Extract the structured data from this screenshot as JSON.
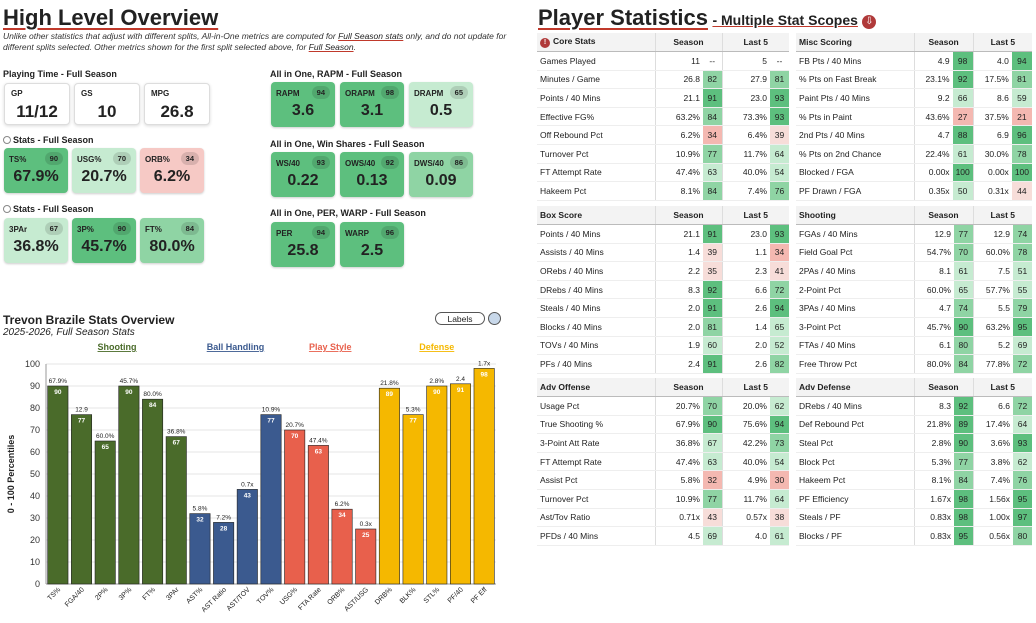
{
  "left": {
    "title": "High Level Overview",
    "note_a": "Unlike other statistics that adjust with different splits, All-in-One metrics are computed for ",
    "note_link1": "Full Season stats",
    "note_b": " only, and do not update for different splits selected. Other metrics shown for the first split selected above, for ",
    "note_link2": "Full Season",
    "note_c": ".",
    "playing_time": {
      "title": "Playing Time - Full Season",
      "cards": [
        {
          "label": "GP",
          "value": "11/12"
        },
        {
          "label": "GS",
          "value": "10"
        },
        {
          "label": "MPG",
          "value": "26.8"
        }
      ]
    },
    "stats1": {
      "title": "Stats - Full Season",
      "cards": [
        {
          "label": "TS%",
          "pct": "90",
          "value": "67.9%",
          "tone": "g1"
        },
        {
          "label": "USG%",
          "pct": "70",
          "value": "20.7%",
          "tone": "g3"
        },
        {
          "label": "ORB%",
          "pct": "34",
          "value": "6.2%",
          "tone": "r1"
        }
      ]
    },
    "stats2": {
      "title": "Stats - Full Season",
      "cards": [
        {
          "label": "3PAr",
          "pct": "67",
          "value": "36.8%",
          "tone": "g3"
        },
        {
          "label": "3P%",
          "pct": "90",
          "value": "45.7%",
          "tone": "g1"
        },
        {
          "label": "FT%",
          "pct": "84",
          "value": "80.0%",
          "tone": "g2"
        }
      ]
    },
    "rapm": {
      "title": "All in One, RAPM - Full Season",
      "cards": [
        {
          "label": "RAPM",
          "pct": "94",
          "value": "3.6",
          "tone": "g1"
        },
        {
          "label": "ORAPM",
          "pct": "98",
          "value": "3.1",
          "tone": "g1"
        },
        {
          "label": "DRAPM",
          "pct": "65",
          "value": "0.5",
          "tone": "g3"
        }
      ]
    },
    "ws": {
      "title": "All in One, Win Shares - Full Season",
      "cards": [
        {
          "label": "WS/40",
          "pct": "93",
          "value": "0.22",
          "tone": "g1"
        },
        {
          "label": "OWS/40",
          "pct": "92",
          "value": "0.13",
          "tone": "g1"
        },
        {
          "label": "DWS/40",
          "pct": "86",
          "value": "0.09",
          "tone": "g2"
        }
      ]
    },
    "per": {
      "title": "All in One, PER, WARP - Full Season",
      "cards": [
        {
          "label": "PER",
          "pct": "94",
          "value": "25.8",
          "tone": "g1"
        },
        {
          "label": "WARP",
          "pct": "96",
          "value": "2.5",
          "tone": "g1"
        }
      ]
    }
  },
  "chart_title": "Trevon Brazile Stats Overview",
  "chart_subtitle": "2025-2026, Full Season Stats",
  "labels_toggle": "Labels",
  "chart_data": {
    "type": "bar",
    "ylabel": "0 - 100 Percentiles",
    "ylim": [
      0,
      100
    ],
    "yticks": [
      0,
      10,
      20,
      30,
      40,
      50,
      60,
      70,
      80,
      90,
      100
    ],
    "groups": [
      {
        "name": "Shooting",
        "color": "#4a6b2a"
      },
      {
        "name": "Ball Handling",
        "color": "#3b5a8f"
      },
      {
        "name": "Play Style",
        "color": "#e8604c"
      },
      {
        "name": "Defense",
        "color": "#f5b800"
      }
    ],
    "categories": [
      "TS%",
      "FGA/40",
      "2P%",
      "3P%",
      "FT%",
      "3PAr",
      "AST%",
      "AST Ratio",
      "AST/TOV",
      "TOV%",
      "USG%",
      "FTA Rate",
      "ORB%",
      "AST/USG",
      "DRB%",
      "BLK%",
      "STL%",
      "PF/40",
      "PF Eff"
    ],
    "values": [
      90,
      77,
      65,
      90,
      84,
      67,
      32,
      28,
      43,
      77,
      70,
      63,
      34,
      25,
      89,
      77,
      90,
      91,
      98
    ],
    "raw_labels": [
      "67.9%",
      "12.9",
      "60.0%",
      "45.7%",
      "80.0%",
      "36.8%",
      "5.8%",
      "7.2%",
      "0.7x",
      "10.9%",
      "20.7%",
      "47.4%",
      "6.2%",
      "0.3x",
      "21.8%",
      "5.3%",
      "2.8%",
      "2.4",
      "1.7x"
    ],
    "group_index": [
      0,
      0,
      0,
      0,
      0,
      0,
      1,
      1,
      1,
      1,
      2,
      2,
      2,
      2,
      3,
      3,
      3,
      3,
      3
    ]
  },
  "right": {
    "title": "Player Statistics",
    "subtitle": "- Multiple Stat Scopes",
    "col_season": "Season",
    "col_last5": "Last 5",
    "tables": [
      {
        "title": "Core Stats",
        "rows": [
          [
            "Games Played",
            "11",
            "--",
            "5",
            "--"
          ],
          [
            "Minutes / Game",
            "26.8",
            "82",
            "27.9",
            "81"
          ],
          [
            "Points / 40 Mins",
            "21.1",
            "91",
            "23.0",
            "93"
          ],
          [
            "Effective FG%",
            "63.2%",
            "84",
            "73.3%",
            "93"
          ],
          [
            "Off Rebound Pct",
            "6.2%",
            "34",
            "6.4%",
            "39"
          ],
          [
            "Turnover Pct",
            "10.9%",
            "77",
            "11.7%",
            "64"
          ],
          [
            "FT Attempt Rate",
            "47.4%",
            "63",
            "40.0%",
            "54"
          ],
          [
            "Hakeem Pct",
            "8.1%",
            "84",
            "7.4%",
            "76"
          ]
        ]
      },
      {
        "title": "Misc Scoring",
        "rows": [
          [
            "FB Pts / 40 Mins",
            "4.9",
            "98",
            "4.0",
            "94"
          ],
          [
            "% Pts on Fast Break",
            "23.1%",
            "92",
            "17.5%",
            "81"
          ],
          [
            "Paint Pts / 40 Mins",
            "9.2",
            "66",
            "8.6",
            "59"
          ],
          [
            "% Pts in Paint",
            "43.6%",
            "27",
            "37.5%",
            "21"
          ],
          [
            "2nd Pts / 40 Mins",
            "4.7",
            "88",
            "6.9",
            "96"
          ],
          [
            "% Pts on 2nd Chance",
            "22.4%",
            "61",
            "30.0%",
            "78"
          ],
          [
            "Blocked / FGA",
            "0.00x",
            "100",
            "0.00x",
            "100"
          ],
          [
            "PF Drawn / FGA",
            "0.35x",
            "50",
            "0.31x",
            "44"
          ]
        ]
      },
      {
        "title": "Box Score",
        "rows": [
          [
            "Points / 40 Mins",
            "21.1",
            "91",
            "23.0",
            "93"
          ],
          [
            "Assists / 40 Mins",
            "1.4",
            "39",
            "1.1",
            "34"
          ],
          [
            "ORebs / 40 Mins",
            "2.2",
            "35",
            "2.3",
            "41"
          ],
          [
            "DRebs / 40 Mins",
            "8.3",
            "92",
            "6.6",
            "72"
          ],
          [
            "Steals / 40 Mins",
            "2.0",
            "91",
            "2.6",
            "94"
          ],
          [
            "Blocks / 40 Mins",
            "2.0",
            "81",
            "1.4",
            "65"
          ],
          [
            "TOVs / 40 Mins",
            "1.9",
            "60",
            "2.0",
            "52"
          ],
          [
            "PFs / 40 Mins",
            "2.4",
            "91",
            "2.6",
            "82"
          ]
        ]
      },
      {
        "title": "Shooting",
        "rows": [
          [
            "FGAs / 40 Mins",
            "12.9",
            "77",
            "12.9",
            "74"
          ],
          [
            "Field Goal Pct",
            "54.7%",
            "70",
            "60.0%",
            "78"
          ],
          [
            "2PAs / 40 Mins",
            "8.1",
            "61",
            "7.5",
            "51"
          ],
          [
            "2-Point Pct",
            "60.0%",
            "65",
            "57.7%",
            "55"
          ],
          [
            "3PAs / 40 Mins",
            "4.7",
            "74",
            "5.5",
            "79"
          ],
          [
            "3-Point Pct",
            "45.7%",
            "90",
            "63.2%",
            "95"
          ],
          [
            "FTAs / 40 Mins",
            "6.1",
            "80",
            "5.2",
            "69"
          ],
          [
            "Free Throw Pct",
            "80.0%",
            "84",
            "77.8%",
            "72"
          ]
        ]
      },
      {
        "title": "Adv Offense",
        "rows": [
          [
            "Usage Pct",
            "20.7%",
            "70",
            "20.0%",
            "62"
          ],
          [
            "True Shooting %",
            "67.9%",
            "90",
            "75.6%",
            "94"
          ],
          [
            "3-Point Att Rate",
            "36.8%",
            "67",
            "42.2%",
            "73"
          ],
          [
            "FT Attempt Rate",
            "47.4%",
            "63",
            "40.0%",
            "54"
          ],
          [
            "Assist Pct",
            "5.8%",
            "32",
            "4.9%",
            "30"
          ],
          [
            "Turnover Pct",
            "10.9%",
            "77",
            "11.7%",
            "64"
          ],
          [
            "Ast/Tov Ratio",
            "0.71x",
            "43",
            "0.57x",
            "38"
          ],
          [
            "PFDs / 40 Mins",
            "4.5",
            "69",
            "4.0",
            "61"
          ]
        ]
      },
      {
        "title": "Adv Defense",
        "rows": [
          [
            "DRebs / 40 Mins",
            "8.3",
            "92",
            "6.6",
            "72"
          ],
          [
            "Def Rebound Pct",
            "21.8%",
            "89",
            "17.4%",
            "64"
          ],
          [
            "Steal Pct",
            "2.8%",
            "90",
            "3.6%",
            "93"
          ],
          [
            "Block Pct",
            "5.3%",
            "77",
            "3.8%",
            "62"
          ],
          [
            "Hakeem Pct",
            "8.1%",
            "84",
            "7.4%",
            "76"
          ],
          [
            "PF Efficiency",
            "1.67x",
            "98",
            "1.56x",
            "95"
          ],
          [
            "Steals / PF",
            "0.83x",
            "98",
            "1.00x",
            "97"
          ],
          [
            "Blocks / PF",
            "0.83x",
            "95",
            "0.56x",
            "80"
          ]
        ]
      }
    ]
  }
}
